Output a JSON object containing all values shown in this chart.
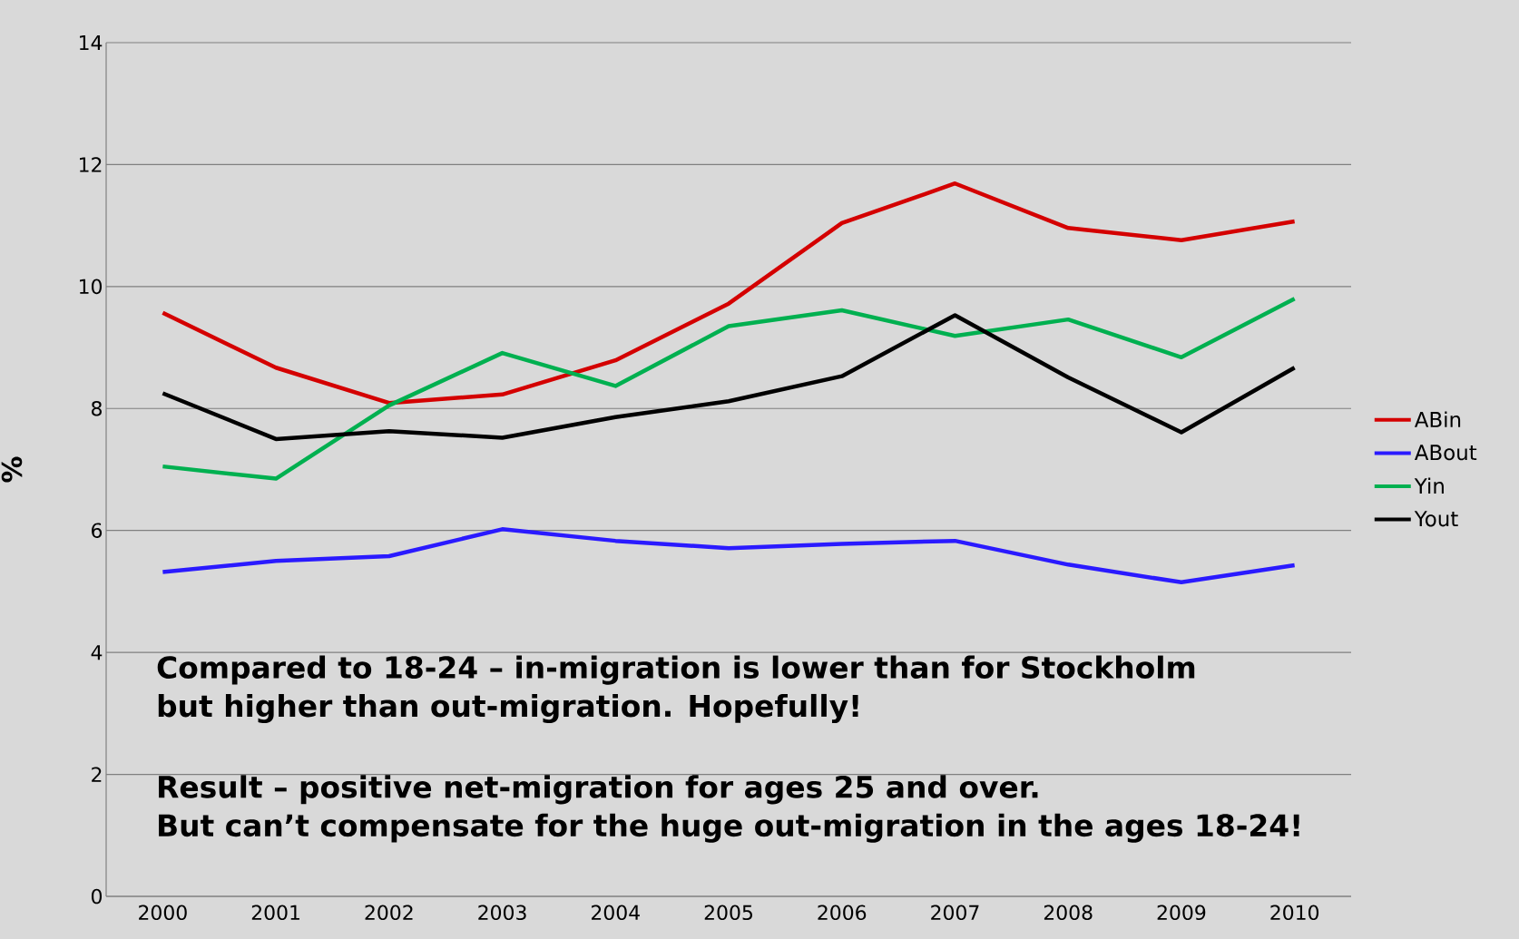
{
  "chart_data": {
    "type": "line",
    "ylabel": "%",
    "categories": [
      "2000",
      "2001",
      "2002",
      "2003",
      "2004",
      "2005",
      "2006",
      "2007",
      "2008",
      "2009",
      "2010"
    ],
    "ylim": [
      0,
      14
    ],
    "yticks": [
      0,
      2,
      4,
      6,
      8,
      10,
      12,
      14
    ],
    "grid": "y",
    "legend": "right",
    "marker": "none",
    "line_style": "solid",
    "series": [
      {
        "name": "ABin",
        "color": "#d40000",
        "values": [
          9.57,
          8.67,
          8.09,
          8.23,
          8.79,
          9.72,
          11.04,
          11.69,
          10.96,
          10.76,
          11.07
        ]
      },
      {
        "name": "ABout",
        "color": "#2a1aff",
        "values": [
          5.32,
          5.5,
          5.58,
          6.02,
          5.83,
          5.71,
          5.78,
          5.83,
          5.44,
          5.15,
          5.43
        ]
      },
      {
        "name": "Yin",
        "color": "#00b050",
        "values": [
          7.05,
          6.85,
          8.05,
          8.91,
          8.37,
          9.35,
          9.61,
          9.19,
          9.46,
          8.84,
          9.8
        ]
      },
      {
        "name": "Yout",
        "color": "#000000",
        "values": [
          8.25,
          7.5,
          7.63,
          7.52,
          7.86,
          8.12,
          8.53,
          9.53,
          8.51,
          7.61,
          8.67
        ]
      }
    ],
    "annotations": [
      "Compared to 18-24 – in-migration is lower than for Stockholm",
      "but higher than out-migration. Hopefully!",
      "Result – positive net-migration for ages 25 and over.",
      "But can’t compensate for the huge out-migration in the ages 18-24!"
    ]
  }
}
